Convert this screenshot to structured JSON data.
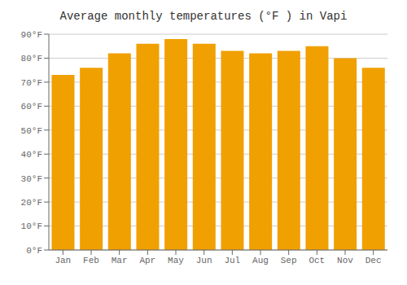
{
  "chart_data": {
    "type": "bar",
    "title": "Average monthly temperatures (°F ) in Vapi",
    "categories": [
      "Jan",
      "Feb",
      "Mar",
      "Apr",
      "May",
      "Jun",
      "Jul",
      "Aug",
      "Sep",
      "Oct",
      "Nov",
      "Dec"
    ],
    "values": [
      73,
      76,
      82,
      86,
      88,
      86,
      83,
      82,
      83,
      85,
      80,
      76
    ],
    "color": "#F0A000",
    "ylim": [
      0,
      90
    ],
    "yticks": [
      {
        "value": 0,
        "label": "0°F"
      },
      {
        "value": 10,
        "label": "10°F"
      },
      {
        "value": 20,
        "label": "20°F"
      },
      {
        "value": 30,
        "label": "30°F"
      },
      {
        "value": 40,
        "label": "40°F"
      },
      {
        "value": 50,
        "label": "50°F"
      },
      {
        "value": 60,
        "label": "60°F"
      },
      {
        "value": 70,
        "label": "70°F"
      },
      {
        "value": 80,
        "label": "80°F"
      },
      {
        "value": 90,
        "label": "90°F"
      }
    ],
    "grid": true
  }
}
